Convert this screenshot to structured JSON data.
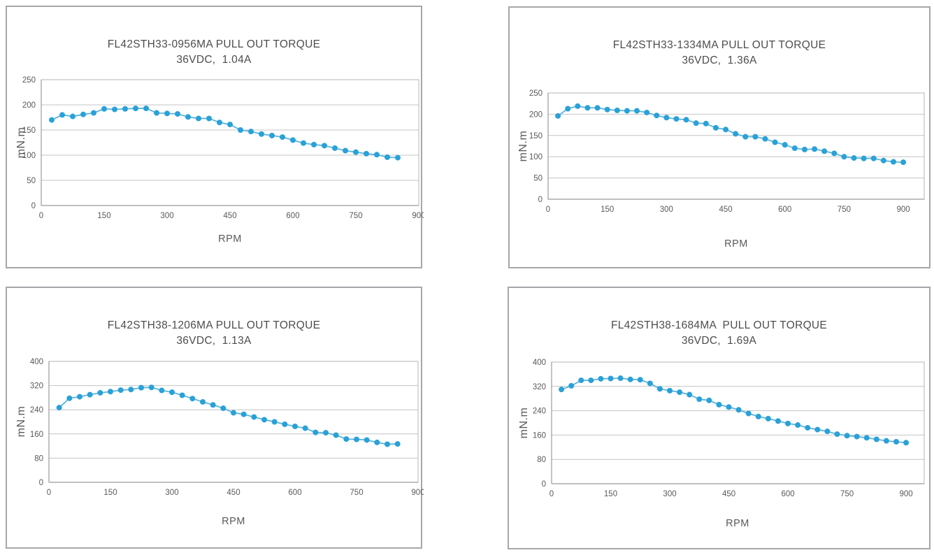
{
  "page": {
    "background": "#ffffff",
    "description": "Four pull-out torque curves for FL42 stepper motors"
  },
  "style": {
    "marker_color": "#2aa1d7",
    "line_color": "#58b5de",
    "grid_color": "#c4c4c4",
    "plot_border_color": "#b4b4b6",
    "axis_color": "#9b9b9b",
    "tick_text_color": "#595959",
    "title_color": "#4d4d4d",
    "panel_border_color": "#a7a7ab"
  },
  "chart_data": [
    {
      "type": "line",
      "title": "FL42STH33-0956MA PULL OUT TORQUE",
      "subtitle": "36VDC,  1.04A",
      "xlabel": "RPM",
      "ylabel": "mN.m",
      "ylim": [
        0,
        250
      ],
      "xlim": [
        0,
        900
      ],
      "yticks": [
        0,
        50,
        100,
        150,
        200,
        250
      ],
      "xticks": [
        0,
        150,
        300,
        450,
        600,
        750,
        900
      ],
      "grid": "horizontal",
      "legend": "none",
      "x": [
        25,
        50,
        75,
        100,
        125,
        150,
        175,
        200,
        225,
        250,
        275,
        300,
        325,
        350,
        375,
        400,
        425,
        450,
        475,
        500,
        525,
        550,
        575,
        600,
        625,
        650,
        675,
        700,
        725,
        750,
        775,
        800,
        825,
        850
      ],
      "values": [
        170,
        180,
        177,
        181,
        184,
        192,
        191,
        192,
        193,
        193,
        184,
        183,
        182,
        176,
        173,
        173,
        165,
        161,
        150,
        147,
        142,
        139,
        136,
        130,
        124,
        121,
        119,
        114,
        109,
        106,
        103,
        101,
        96,
        95
      ]
    },
    {
      "type": "line",
      "title": "FL42STH33-1334MA PULL OUT TORQUE",
      "subtitle": "36VDC,  1.36A",
      "xlabel": "RPM",
      "ylabel": "mN.m",
      "ylim": [
        0,
        250
      ],
      "xlim": [
        0,
        953
      ],
      "yticks": [
        0,
        50,
        100,
        150,
        200,
        250
      ],
      "xticks": [
        0,
        150,
        300,
        450,
        600,
        750,
        900
      ],
      "grid": "horizontal",
      "legend": "none",
      "x": [
        25,
        50,
        75,
        100,
        125,
        150,
        175,
        200,
        225,
        250,
        275,
        300,
        325,
        350,
        375,
        400,
        425,
        450,
        475,
        500,
        525,
        550,
        575,
        600,
        625,
        650,
        675,
        700,
        725,
        750,
        775,
        800,
        825,
        850,
        875,
        900
      ],
      "values": [
        196,
        213,
        219,
        215,
        215,
        211,
        209,
        208,
        208,
        204,
        197,
        192,
        189,
        187,
        179,
        178,
        168,
        164,
        154,
        147,
        147,
        142,
        134,
        128,
        120,
        117,
        118,
        113,
        108,
        100,
        97,
        96,
        96,
        91,
        88,
        87
      ]
    },
    {
      "type": "line",
      "title": "FL42STH38-1206MA PULL OUT TORQUE",
      "subtitle": "36VDC,  1.13A",
      "xlabel": "RPM",
      "ylabel": "mN.m",
      "ylim": [
        0,
        400
      ],
      "xlim": [
        0,
        900
      ],
      "yticks": [
        0,
        80,
        160,
        240,
        320,
        400
      ],
      "xticks": [
        0,
        150,
        300,
        450,
        600,
        750,
        900
      ],
      "grid": "horizontal",
      "legend": "none",
      "x": [
        25,
        50,
        75,
        100,
        125,
        150,
        175,
        200,
        225,
        250,
        275,
        300,
        325,
        350,
        375,
        400,
        425,
        450,
        475,
        500,
        525,
        550,
        575,
        600,
        625,
        650,
        675,
        700,
        725,
        750,
        775,
        800,
        825,
        850
      ],
      "values": [
        247,
        278,
        283,
        290,
        296,
        300,
        305,
        307,
        313,
        314,
        304,
        298,
        288,
        277,
        266,
        256,
        245,
        230,
        225,
        216,
        207,
        200,
        192,
        185,
        179,
        165,
        164,
        156,
        143,
        142,
        140,
        132,
        126,
        127
      ]
    },
    {
      "type": "line",
      "title": "FL42STH38-1684MA  PULL OUT TORQUE",
      "subtitle": "36VDC,  1.69A",
      "xlabel": "RPM",
      "ylabel": "mN.m",
      "ylim": [
        0,
        400
      ],
      "xlim": [
        0,
        946
      ],
      "yticks": [
        0,
        80,
        160,
        240,
        320,
        400
      ],
      "xticks": [
        0,
        150,
        300,
        450,
        600,
        750,
        900
      ],
      "grid": "horizontal",
      "legend": "none",
      "x": [
        25,
        50,
        75,
        100,
        125,
        150,
        175,
        200,
        225,
        250,
        275,
        300,
        325,
        350,
        375,
        400,
        425,
        450,
        475,
        500,
        525,
        550,
        575,
        600,
        625,
        650,
        675,
        700,
        725,
        750,
        775,
        800,
        825,
        850,
        875,
        900
      ],
      "values": [
        310,
        322,
        340,
        340,
        345,
        346,
        347,
        343,
        342,
        330,
        312,
        306,
        301,
        293,
        278,
        274,
        260,
        252,
        243,
        231,
        221,
        214,
        206,
        198,
        193,
        184,
        178,
        172,
        163,
        158,
        155,
        151,
        146,
        141,
        138,
        135
      ]
    }
  ]
}
